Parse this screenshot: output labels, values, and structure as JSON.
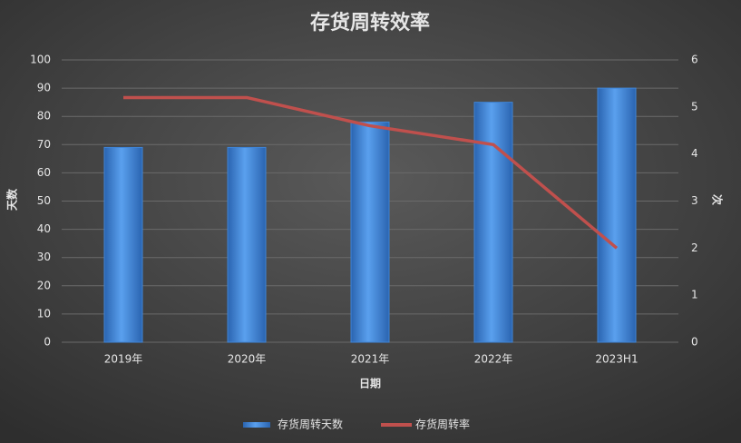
{
  "chart_data": {
    "type": "bar",
    "title": "存货周转效率",
    "x_label": "日期",
    "y_label": "天数",
    "y2_label": "次",
    "categories": [
      "2019年",
      "2020年",
      "2021年",
      "2022年",
      "2023H1"
    ],
    "series": [
      {
        "name": "存货周转天数",
        "type": "bar",
        "color": "#3f84d6",
        "values": [
          69,
          69,
          78,
          85,
          90
        ]
      },
      {
        "name": "存货周转率",
        "type": "line",
        "axis": "y2",
        "color": "#c0504d",
        "values": [
          5.2,
          5.2,
          4.6,
          4.2,
          2.0
        ]
      }
    ],
    "ylim": [
      0,
      100
    ],
    "yticks": [
      0,
      10,
      20,
      30,
      40,
      50,
      60,
      70,
      80,
      90,
      100
    ],
    "y2lim": [
      0,
      6
    ],
    "y2ticks": [
      0,
      1,
      2,
      3,
      4,
      5,
      6
    ],
    "grid": true,
    "legend": "bottom"
  }
}
